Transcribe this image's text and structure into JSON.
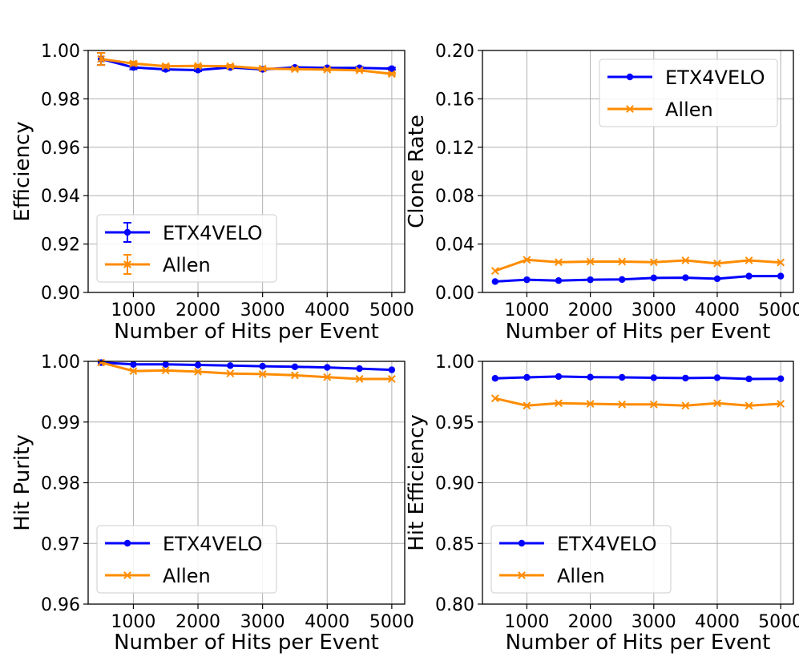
{
  "colors": {
    "etx": "#0000ff",
    "allen": "#ff8c00",
    "grid": "#b0b0b0"
  },
  "chart_data": [
    {
      "type": "line",
      "title": "",
      "xlabel": "Number of Hits per Event",
      "ylabel": "Efficiency",
      "xlim": [
        300,
        5200
      ],
      "ylim": [
        0.9,
        1.0
      ],
      "xticks": [
        1000,
        2000,
        3000,
        4000,
        5000
      ],
      "yticks": [
        0.9,
        0.92,
        0.94,
        0.96,
        0.98,
        1.0
      ],
      "ytick_labels": [
        "0.90",
        "0.92",
        "0.94",
        "0.96",
        "0.98",
        "1.00"
      ],
      "grid": true,
      "legend": "lower-left",
      "legend_style": "errorbar",
      "x": [
        500,
        1000,
        1500,
        2000,
        2500,
        3000,
        3500,
        4000,
        4500,
        5000
      ],
      "series": [
        {
          "name": "ETX4VELO",
          "color_key": "etx",
          "marker": "dot",
          "values": [
            0.9965,
            0.993,
            0.9922,
            0.9919,
            0.993,
            0.9922,
            0.993,
            0.9928,
            0.9928,
            0.9925
          ],
          "errors": [
            0.0025,
            0.0008,
            0.0006,
            0.0005,
            0.0005,
            0.0004,
            0.0004,
            0.0004,
            0.0004,
            0.0004
          ]
        },
        {
          "name": "Allen",
          "color_key": "allen",
          "marker": "x",
          "values": [
            0.9965,
            0.9946,
            0.9935,
            0.9936,
            0.9935,
            0.9925,
            0.9923,
            0.9921,
            0.9918,
            0.9903
          ],
          "errors": [
            0.0025,
            0.0008,
            0.0006,
            0.0005,
            0.0005,
            0.0004,
            0.0004,
            0.0004,
            0.0004,
            0.0004
          ]
        }
      ]
    },
    {
      "type": "line",
      "title": "",
      "xlabel": "Number of Hits per Event",
      "ylabel": "Clone Rate",
      "xlim": [
        300,
        5200
      ],
      "ylim": [
        0.0,
        0.2
      ],
      "xticks": [
        1000,
        2000,
        3000,
        4000,
        5000
      ],
      "yticks": [
        0.0,
        0.04,
        0.08,
        0.12,
        0.16,
        0.2
      ],
      "ytick_labels": [
        "0.00",
        "0.04",
        "0.08",
        "0.12",
        "0.16",
        "0.20"
      ],
      "grid": true,
      "legend": "upper-right",
      "legend_style": "line",
      "x": [
        500,
        1000,
        1500,
        2000,
        2500,
        3000,
        3500,
        4000,
        4500,
        5000
      ],
      "series": [
        {
          "name": "ETX4VELO",
          "color_key": "etx",
          "marker": "dot",
          "values": [
            0.009,
            0.0105,
            0.0098,
            0.0105,
            0.0107,
            0.012,
            0.0122,
            0.0113,
            0.0135,
            0.0135
          ]
        },
        {
          "name": "Allen",
          "color_key": "allen",
          "marker": "x",
          "values": [
            0.0178,
            0.027,
            0.025,
            0.0255,
            0.0255,
            0.025,
            0.0265,
            0.024,
            0.0265,
            0.0248
          ]
        }
      ]
    },
    {
      "type": "line",
      "title": "",
      "xlabel": "Number of Hits per Event",
      "ylabel": "Hit Purity",
      "xlim": [
        300,
        5200
      ],
      "ylim": [
        0.96,
        1.0
      ],
      "xticks": [
        1000,
        2000,
        3000,
        4000,
        5000
      ],
      "yticks": [
        0.96,
        0.97,
        0.98,
        0.99,
        1.0
      ],
      "ytick_labels": [
        "0.96",
        "0.97",
        "0.98",
        "0.99",
        "1.00"
      ],
      "grid": true,
      "legend": "lower-left",
      "legend_style": "line",
      "x": [
        500,
        1000,
        1500,
        2000,
        2500,
        3000,
        3500,
        4000,
        4500,
        5000
      ],
      "series": [
        {
          "name": "ETX4VELO",
          "color_key": "etx",
          "marker": "dot",
          "values": [
            0.9998,
            0.9995,
            0.9995,
            0.9994,
            0.9993,
            0.9992,
            0.9991,
            0.999,
            0.9988,
            0.9986
          ]
        },
        {
          "name": "Allen",
          "color_key": "allen",
          "marker": "x",
          "values": [
            0.9998,
            0.9984,
            0.9985,
            0.9983,
            0.998,
            0.9979,
            0.9977,
            0.9974,
            0.9971,
            0.9971
          ]
        }
      ]
    },
    {
      "type": "line",
      "title": "",
      "xlabel": "Number of Hits per Event",
      "ylabel": "Hit Efficiency",
      "xlim": [
        300,
        5200
      ],
      "ylim": [
        0.8,
        1.0
      ],
      "xticks": [
        1000,
        2000,
        3000,
        4000,
        5000
      ],
      "yticks": [
        0.8,
        0.85,
        0.9,
        0.95,
        1.0
      ],
      "ytick_labels": [
        "0.80",
        "0.85",
        "0.90",
        "0.95",
        "1.00"
      ],
      "grid": true,
      "legend": "lower-left",
      "legend_style": "line",
      "x": [
        500,
        1000,
        1500,
        2000,
        2500,
        3000,
        3500,
        4000,
        4500,
        5000
      ],
      "series": [
        {
          "name": "ETX4VELO",
          "color_key": "etx",
          "marker": "dot",
          "values": [
            0.986,
            0.9868,
            0.9875,
            0.987,
            0.9868,
            0.9865,
            0.9862,
            0.9865,
            0.9855,
            0.9857
          ]
        },
        {
          "name": "Allen",
          "color_key": "allen",
          "marker": "x",
          "values": [
            0.9695,
            0.9635,
            0.9655,
            0.965,
            0.9645,
            0.9645,
            0.9635,
            0.9655,
            0.9635,
            0.965
          ]
        }
      ]
    }
  ]
}
